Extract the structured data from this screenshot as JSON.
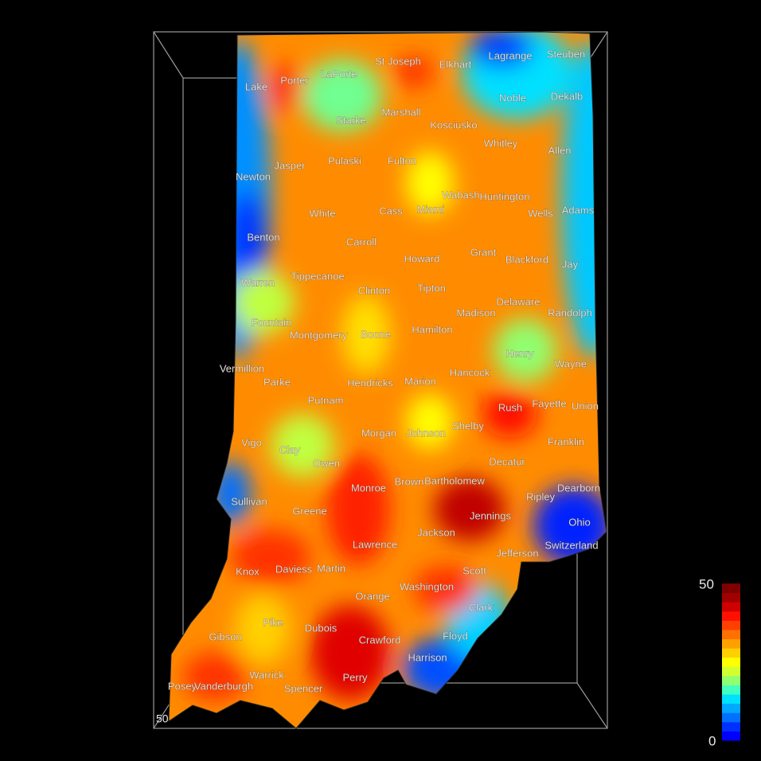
{
  "map": {
    "counties": [
      "Lake",
      "Porter",
      "LaPorte",
      "St Joseph",
      "Elkhart",
      "Lagrange",
      "Steuben",
      "Starke",
      "Marshall",
      "Kosciusko",
      "Noble",
      "Dekalb",
      "Jasper",
      "Pulaski",
      "Fulton",
      "Whitley",
      "Allen",
      "Newton",
      "White",
      "Cass",
      "Miami",
      "Wabash",
      "Huntington",
      "Wells",
      "Adams",
      "Benton",
      "Carroll",
      "Howard",
      "Grant",
      "Blackford",
      "Jay",
      "Warren",
      "Tippecanoe",
      "Clinton",
      "Tipton",
      "Madison",
      "Delaware",
      "Randolph",
      "Fountain",
      "Montgomery",
      "Boone",
      "Hamilton",
      "Henry",
      "Vermillion",
      "Parke",
      "Putnam",
      "Hendricks",
      "Marion",
      "Hancock",
      "Wayne",
      "Fayette",
      "Union",
      "Rush",
      "Vigo",
      "Clay",
      "Owen",
      "Morgan",
      "Johnson",
      "Shelby",
      "Franklin",
      "Decatur",
      "Sullivan",
      "Greene",
      "Monroe",
      "Brown",
      "Bartholomew",
      "Ripley",
      "Dearborn",
      "Jennings",
      "Ohio",
      "Jackson",
      "Lawrence",
      "Switzerland",
      "Jefferson",
      "Knox",
      "Daviess",
      "Martin",
      "Scott",
      "Washington",
      "Orange",
      "Clark",
      "Pike",
      "Gibson",
      "Dubois",
      "Crawford",
      "Floyd",
      "Harrison",
      "Warrick",
      "Perry",
      "Spencer",
      "Posey",
      "Vanderburgh"
    ],
    "corner_label": "50",
    "colorbar": {
      "max": 50,
      "min": 0
    }
  }
}
